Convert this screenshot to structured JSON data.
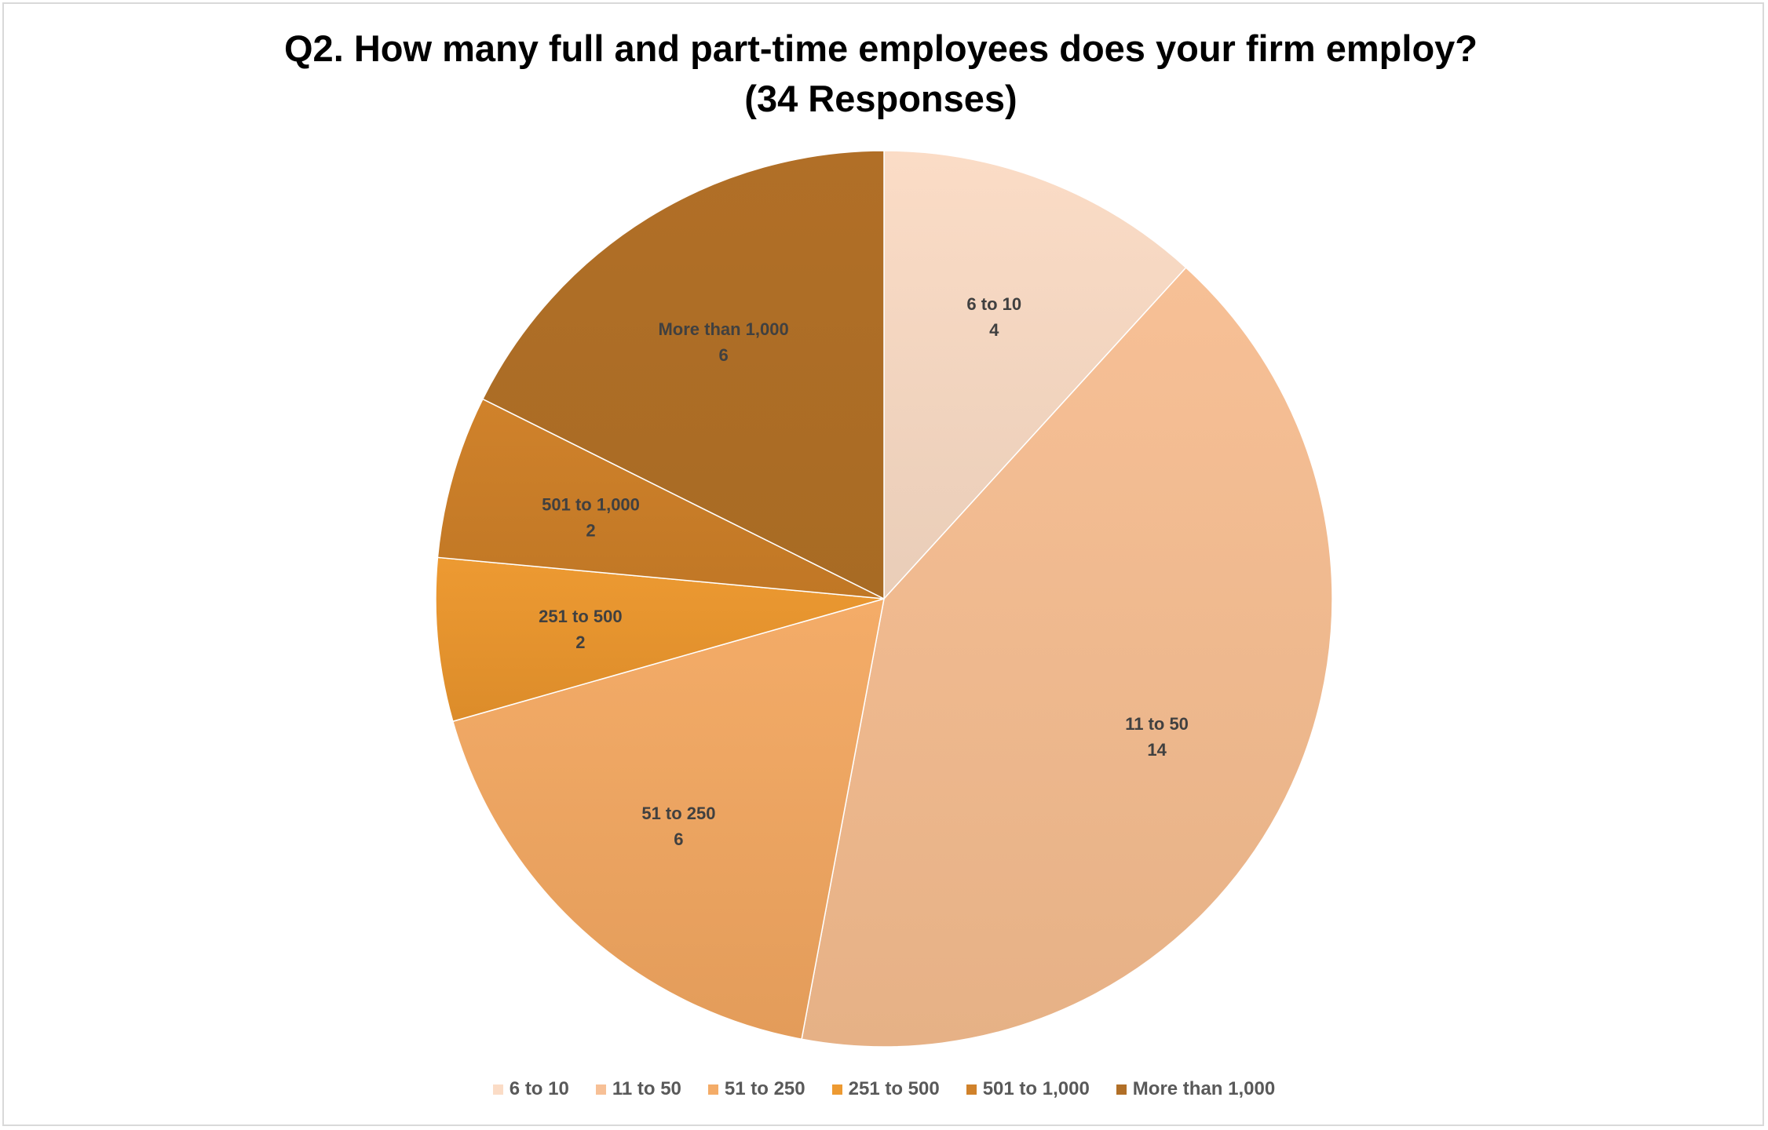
{
  "chart_data": {
    "type": "pie",
    "title": "Q2. How many full and part-time employees does your firm employ?",
    "subtitle": "(34 Responses)",
    "categories": [
      "6 to 10",
      "11 to 50",
      "51 to 250",
      "251 to 500",
      "501 to 1,000",
      "More than 1,000"
    ],
    "values": [
      4,
      14,
      6,
      2,
      2,
      6
    ],
    "colors": [
      "#fbdcc6",
      "#f7c096",
      "#f4ac68",
      "#ed9a32",
      "#d0822b",
      "#b16f27"
    ],
    "colors_dark": [
      "#e9cdb8",
      "#e6b186",
      "#e39c5a",
      "#dc8c2a",
      "#c07725",
      "#a86b24"
    ],
    "data_labels": true,
    "legend_position": "bottom"
  }
}
